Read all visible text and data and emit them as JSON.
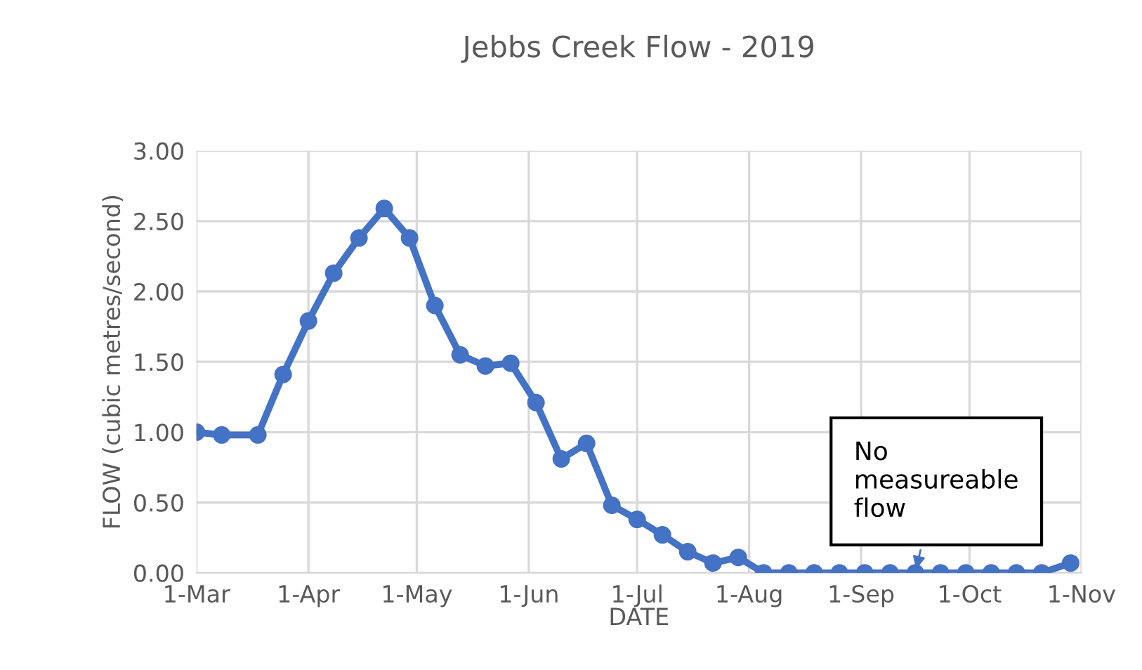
{
  "chart_data": {
    "type": "line",
    "title": "Jebbs Creek Flow - 2019",
    "xlabel": "DATE",
    "ylabel": "FLOW (cubic metres/second)",
    "x": [
      "2019-03-01",
      "2019-03-08",
      "2019-03-18",
      "2019-03-25",
      "2019-04-01",
      "2019-04-08",
      "2019-04-15",
      "2019-04-22",
      "2019-04-29",
      "2019-05-06",
      "2019-05-13",
      "2019-05-20",
      "2019-05-27",
      "2019-06-03",
      "2019-06-10",
      "2019-06-17",
      "2019-06-24",
      "2019-07-01",
      "2019-07-08",
      "2019-07-15",
      "2019-07-22",
      "2019-07-29",
      "2019-08-05",
      "2019-08-12",
      "2019-08-19",
      "2019-08-26",
      "2019-09-02",
      "2019-09-09",
      "2019-09-16",
      "2019-09-23",
      "2019-09-30",
      "2019-10-07",
      "2019-10-14",
      "2019-10-21",
      "2019-10-29"
    ],
    "series": [
      {
        "color": "#4472c4",
        "values": [
          1.0,
          0.98,
          0.98,
          1.41,
          1.79,
          2.13,
          2.38,
          2.59,
          2.38,
          1.9,
          1.55,
          1.47,
          1.49,
          1.21,
          0.81,
          0.92,
          0.48,
          0.38,
          0.27,
          0.15,
          0.07,
          0.11,
          0,
          0,
          0,
          0,
          0,
          0,
          0,
          0,
          0,
          0,
          0,
          0,
          0.07
        ]
      }
    ],
    "xlim": [
      "2019-03-01",
      "2019-11-01"
    ],
    "xticks": [
      {
        "value": "2019-03-01",
        "label": "1-Mar"
      },
      {
        "value": "2019-04-01",
        "label": "1-Apr"
      },
      {
        "value": "2019-05-01",
        "label": "1-May"
      },
      {
        "value": "2019-06-01",
        "label": "1-Jun"
      },
      {
        "value": "2019-07-01",
        "label": "1-Jul"
      },
      {
        "value": "2019-08-01",
        "label": "1-Aug"
      },
      {
        "value": "2019-09-01",
        "label": "1-Sep"
      },
      {
        "value": "2019-10-01",
        "label": "1-Oct"
      },
      {
        "value": "2019-11-01",
        "label": "1-Nov"
      }
    ],
    "ylim": [
      0,
      3
    ],
    "yticks": [
      {
        "value": 0,
        "label": "0.00"
      },
      {
        "value": 0.5,
        "label": "0.50"
      },
      {
        "value": 1,
        "label": "1.00"
      },
      {
        "value": 1.5,
        "label": "1.50"
      },
      {
        "value": 2,
        "label": "2.00"
      },
      {
        "value": 2.5,
        "label": "2.50"
      },
      {
        "value": 3,
        "label": "3.00"
      }
    ],
    "annotations": [
      {
        "text": "No\nmeasureable\nflow",
        "x": "2019-09-16",
        "y": 0
      }
    ],
    "grid": true,
    "marker": "circle",
    "line_style": "solid",
    "legend": false
  }
}
